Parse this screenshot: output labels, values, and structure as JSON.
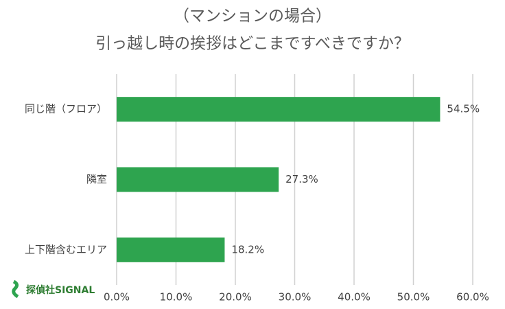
{
  "chart_data": {
    "type": "hbar",
    "title": [
      "（マンションの場合）",
      "引っ越し時の挨拶はどこまですべきですか？"
    ],
    "categories": [
      "同じ階（フロア）",
      "隣室",
      "上下階含むエリア"
    ],
    "values": [
      54.5,
      27.3,
      18.2
    ],
    "value_labels": [
      "54.5%",
      "27.3%",
      "18.2%"
    ],
    "color": "#2ea44f",
    "xlim": [
      0,
      60
    ],
    "xticks": [
      {
        "value": 0,
        "label": "0.0%"
      },
      {
        "value": 10,
        "label": "10.0%"
      },
      {
        "value": 20,
        "label": "20.0%"
      },
      {
        "value": 30,
        "label": "30.0%"
      },
      {
        "value": 40,
        "label": "40.0%"
      },
      {
        "value": 50,
        "label": "50.0%"
      },
      {
        "value": 60,
        "label": "60.0%"
      }
    ],
    "grid": true,
    "logo": "探偵社SIGNAL"
  }
}
